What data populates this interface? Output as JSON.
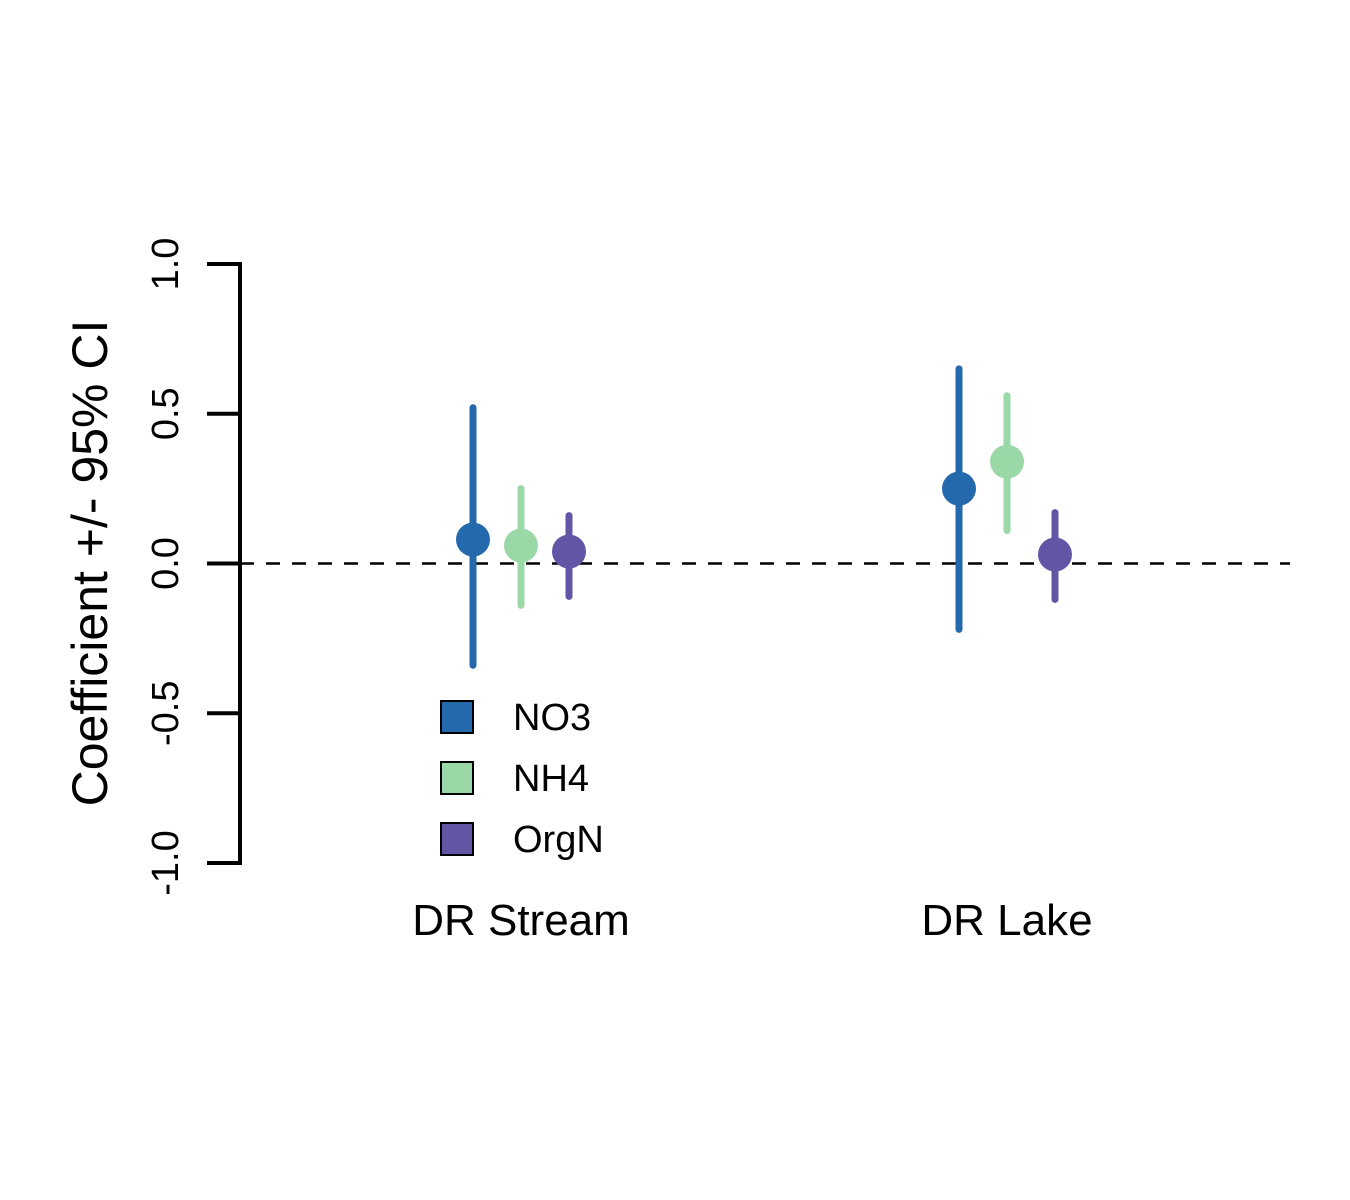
{
  "chart_data": {
    "type": "errorbar",
    "title": "",
    "xlabel": "",
    "ylabel": "Coefficient +/- 95% CI",
    "ylim": [
      -1.0,
      1.0
    ],
    "yticks": [
      -1.0,
      -0.5,
      0.0,
      0.5,
      1.0
    ],
    "ytick_labels": [
      "-1.0",
      "-0.5",
      "0.0",
      "0.5",
      "1.0"
    ],
    "reference_line": {
      "y": 0.0,
      "style": "dashed",
      "color": "#000000"
    },
    "categories": [
      "DR Stream",
      "DR Lake"
    ],
    "legend": {
      "placement": "bottom-left-inside"
    },
    "series": [
      {
        "name": "NO3",
        "color": "#2369AB",
        "estimate": [
          0.08,
          0.25
        ],
        "lower": [
          -0.34,
          -0.22
        ],
        "upper": [
          0.52,
          0.65
        ]
      },
      {
        "name": "NH4",
        "color": "#9BD8A8",
        "estimate": [
          0.06,
          0.34
        ],
        "lower": [
          -0.14,
          0.11
        ],
        "upper": [
          0.25,
          0.56
        ]
      },
      {
        "name": "OrgN",
        "color": "#6355A6",
        "estimate": [
          0.04,
          0.03
        ],
        "lower": [
          -0.11,
          -0.12
        ],
        "upper": [
          0.16,
          0.17
        ]
      }
    ]
  }
}
